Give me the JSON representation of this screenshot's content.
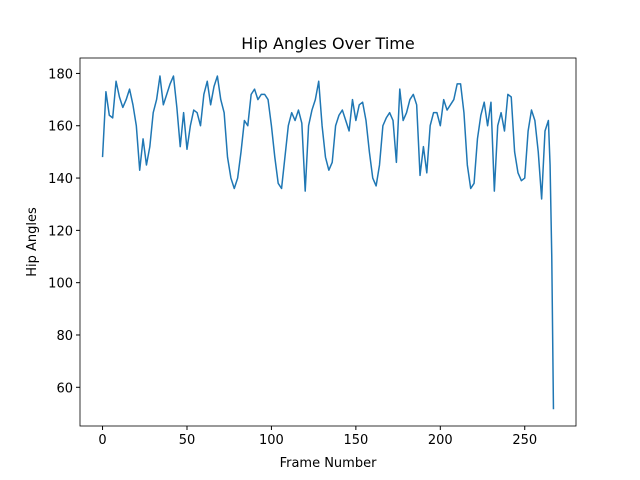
{
  "chart_data": {
    "type": "line",
    "title": "Hip Angles Over Time",
    "x_label": "Frame Number",
    "y_label": "Hip Angles",
    "x": [
      0,
      2,
      4,
      6,
      8,
      10,
      12,
      14,
      16,
      18,
      20,
      22,
      24,
      26,
      28,
      30,
      32,
      34,
      36,
      38,
      40,
      42,
      44,
      46,
      48,
      50,
      52,
      54,
      56,
      58,
      60,
      62,
      64,
      66,
      68,
      70,
      72,
      74,
      76,
      78,
      80,
      82,
      84,
      86,
      88,
      90,
      92,
      94,
      96,
      98,
      100,
      102,
      104,
      106,
      108,
      110,
      112,
      114,
      116,
      118,
      120,
      122,
      124,
      126,
      128,
      130,
      132,
      134,
      136,
      138,
      140,
      142,
      144,
      146,
      148,
      150,
      152,
      154,
      156,
      158,
      160,
      162,
      164,
      166,
      168,
      170,
      172,
      174,
      176,
      178,
      180,
      182,
      184,
      186,
      188,
      190,
      192,
      194,
      196,
      198,
      200,
      202,
      204,
      206,
      208,
      210,
      212,
      214,
      216,
      218,
      220,
      222,
      224,
      226,
      228,
      230,
      232,
      234,
      236,
      238,
      240,
      242,
      244,
      246,
      248,
      250,
      252,
      254,
      256,
      258,
      260,
      262,
      264,
      265,
      266,
      267
    ],
    "series": [
      {
        "name": "Hip Angles",
        "color": "#1f77b4",
        "values": [
          148,
          173,
          164,
          163,
          177,
          171,
          167,
          170,
          174,
          168,
          160,
          143,
          155,
          145,
          152,
          165,
          170,
          179,
          168,
          172,
          176,
          179,
          167,
          152,
          165,
          151,
          160,
          166,
          165,
          160,
          172,
          177,
          168,
          175,
          179,
          170,
          165,
          148,
          140,
          136,
          140,
          150,
          162,
          160,
          172,
          174,
          170,
          172,
          172,
          170,
          160,
          148,
          138,
          136,
          148,
          160,
          165,
          162,
          166,
          161,
          135,
          160,
          166,
          170,
          177,
          160,
          148,
          143,
          146,
          160,
          164,
          166,
          162,
          158,
          170,
          162,
          168,
          169,
          162,
          150,
          140,
          137,
          145,
          160,
          163,
          165,
          162,
          146,
          174,
          162,
          165,
          170,
          172,
          168,
          141,
          152,
          142,
          160,
          165,
          165,
          160,
          170,
          166,
          168,
          170,
          176,
          176,
          165,
          145,
          136,
          138,
          155,
          164,
          169,
          160,
          169,
          135,
          160,
          165,
          158,
          172,
          171,
          150,
          142,
          139,
          140,
          158,
          166,
          162,
          150,
          132,
          158,
          162,
          145,
          110,
          51.6
        ]
      }
    ],
    "xlim": [
      -13.35,
      280.35
    ],
    "ylim": [
      45.2,
      185.9
    ],
    "xticks": [
      0,
      50,
      100,
      150,
      200,
      250
    ],
    "yticks": [
      60,
      80,
      100,
      120,
      140,
      160,
      180
    ]
  }
}
